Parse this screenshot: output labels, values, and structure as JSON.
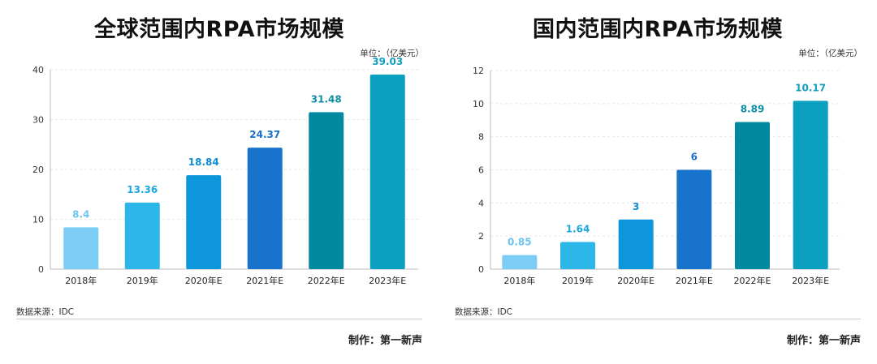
{
  "chart_data": [
    {
      "type": "bar",
      "title": "全球范围内RPA市场规模",
      "unit_label": "单位：（亿美元）",
      "categories": [
        "2018年",
        "2019年",
        "2020年E",
        "2021年E",
        "2022年E",
        "2023年E"
      ],
      "values": [
        8.4,
        13.36,
        18.84,
        24.37,
        31.48,
        39.03
      ],
      "value_labels": [
        "8.4",
        "13.36",
        "18.84",
        "24.37",
        "31.48",
        "39.03"
      ],
      "ylim": [
        0,
        40
      ],
      "yticks": [
        0,
        10,
        20,
        30,
        40
      ],
      "grid": true,
      "bar_colors": [
        "#7ccdf5",
        "#2db7e9",
        "#0d96dc",
        "#1773cb",
        "#00899f",
        "#0b9fc0"
      ],
      "label_colors": [
        "#6fc3ef",
        "#1ba8df",
        "#0d8ad4",
        "#1a6fc5",
        "#0e8ea6",
        "#109ebf"
      ],
      "source": "数据来源：IDC",
      "credit": "制作：第一新声"
    },
    {
      "type": "bar",
      "title": "国内范围内RPA市场规模",
      "unit_label": "单位：（亿美元）",
      "categories": [
        "2018年",
        "2019年",
        "2020年E",
        "2021年E",
        "2022年E",
        "2023年E"
      ],
      "values": [
        0.85,
        1.64,
        3,
        6,
        8.89,
        10.17
      ],
      "value_labels": [
        "0.85",
        "1.64",
        "3",
        "6",
        "8.89",
        "10.17"
      ],
      "ylim": [
        0,
        12
      ],
      "yticks": [
        0,
        2,
        4,
        6,
        8,
        10,
        12
      ],
      "grid": true,
      "bar_colors": [
        "#7ccdf5",
        "#2db7e9",
        "#0d96dc",
        "#1773cb",
        "#00899f",
        "#0b9fc0"
      ],
      "label_colors": [
        "#6fc3ef",
        "#1ba8df",
        "#0d8ad4",
        "#1a6fc5",
        "#0e8ea6",
        "#109ebf"
      ],
      "source": "数据来源：IDC",
      "credit": "制作：第一新声"
    }
  ]
}
